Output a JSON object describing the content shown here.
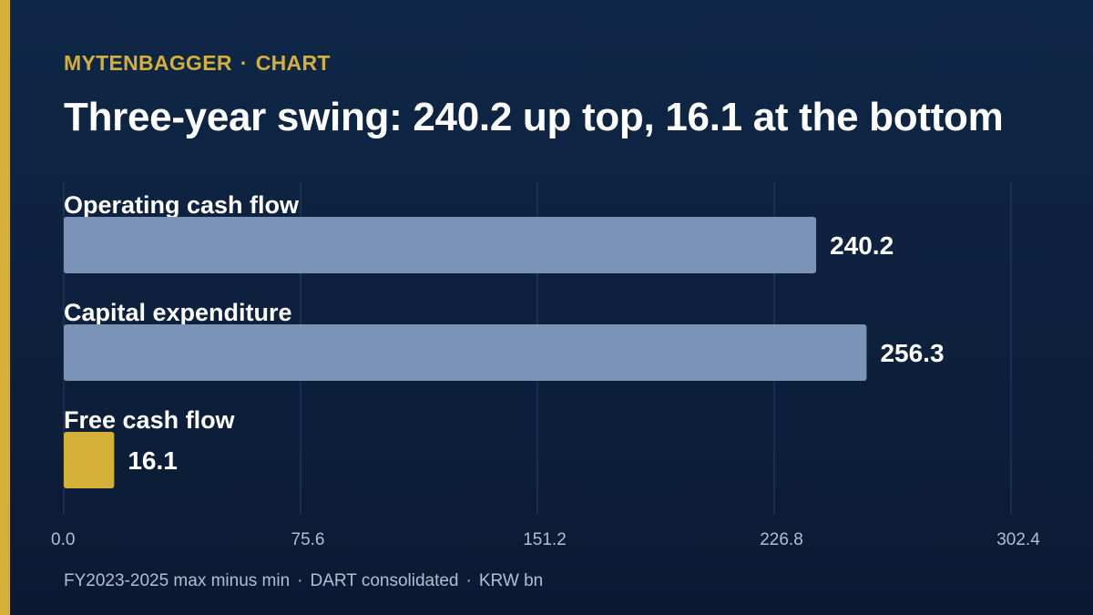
{
  "header": {
    "brand": "MYTENBAGGER",
    "separator": "·",
    "section": "CHART",
    "title": "Three-year swing: 240.2 up top, 16.1 at the bottom"
  },
  "chart_data": {
    "type": "bar",
    "orientation": "horizontal",
    "categories": [
      "Operating cash flow",
      "Capital expenditure",
      "Free cash flow"
    ],
    "values": [
      240.2,
      256.3,
      16.1
    ],
    "value_labels": [
      "240.2",
      "256.3",
      "16.1"
    ],
    "xlim": [
      0,
      302.4
    ],
    "ticks": [
      0.0,
      75.6,
      151.2,
      226.8,
      302.4
    ],
    "tick_labels": [
      "0.0",
      "75.6",
      "151.2",
      "226.8",
      "302.4"
    ],
    "grid": true,
    "colors": [
      "#7b93b6",
      "#7b93b6",
      "#d4b038"
    ]
  },
  "footer": {
    "parts": [
      "FY2023-2025 max minus min",
      "DART consolidated",
      "KRW bn"
    ],
    "separator": "·"
  },
  "colors": {
    "background": "#0f2747",
    "accent": "#d4b038",
    "bar_default": "#7b93b6",
    "gridline": "#2a3f60",
    "tick_text": "#b3bfd1"
  }
}
